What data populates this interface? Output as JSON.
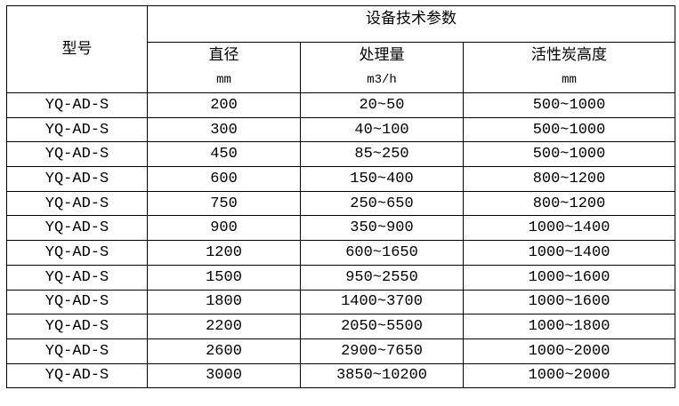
{
  "header": {
    "model": "型号",
    "group": "设备技术参数",
    "columns": [
      {
        "label": "直径",
        "unit": "mm"
      },
      {
        "label": "处理量",
        "unit": "m3/h"
      },
      {
        "label": "活性炭高度",
        "unit": "mm"
      }
    ]
  },
  "rows": [
    [
      "YQ-AD-S",
      "200",
      "20~50",
      "500~1000"
    ],
    [
      "YQ-AD-S",
      "300",
      "40~100",
      "500~1000"
    ],
    [
      "YQ-AD-S",
      "450",
      "85~250",
      "500~1000"
    ],
    [
      "YQ-AD-S",
      "600",
      "150~400",
      "800~1200"
    ],
    [
      "YQ-AD-S",
      "750",
      "250~650",
      "800~1200"
    ],
    [
      "YQ-AD-S",
      "900",
      "350~900",
      "1000~1400"
    ],
    [
      "YQ-AD-S",
      "1200",
      "600~1650",
      "1000~1400"
    ],
    [
      "YQ-AD-S",
      "1500",
      "950~2550",
      "1000~1600"
    ],
    [
      "YQ-AD-S",
      "1800",
      "1400~3700",
      "1000~1600"
    ],
    [
      "YQ-AD-S",
      "2200",
      "2050~5500",
      "1000~1800"
    ],
    [
      "YQ-AD-S",
      "2600",
      "2900~7650",
      "1000~2000"
    ],
    [
      "YQ-AD-S",
      "3000",
      "3850~10200",
      "1000~2000"
    ]
  ]
}
